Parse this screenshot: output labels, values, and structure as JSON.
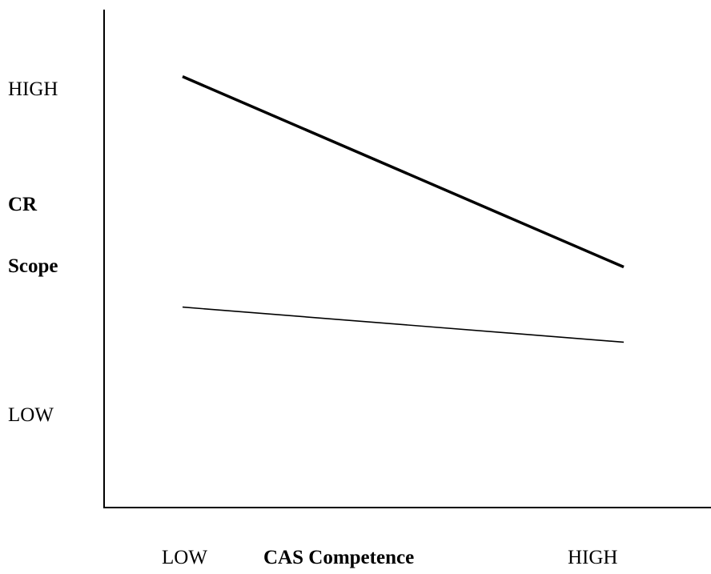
{
  "chart_data": {
    "type": "line",
    "title": "",
    "x": [
      "LOW",
      "HIGH"
    ],
    "xlabel": "CAS Competence",
    "xtick_labels": [
      "LOW",
      "HIGH"
    ],
    "ylabel_lines": [
      "CR",
      "Scope"
    ],
    "ytick_labels": [
      "HIGH",
      "LOW"
    ],
    "ylim": [
      0,
      100
    ],
    "grid": false,
    "legend": "none",
    "series": [
      {
        "values": [
          86,
          48
        ],
        "weight": "heavy",
        "color": "#000000"
      },
      {
        "values": [
          40,
          33
        ],
        "weight": "thin",
        "color": "#000000"
      }
    ]
  }
}
